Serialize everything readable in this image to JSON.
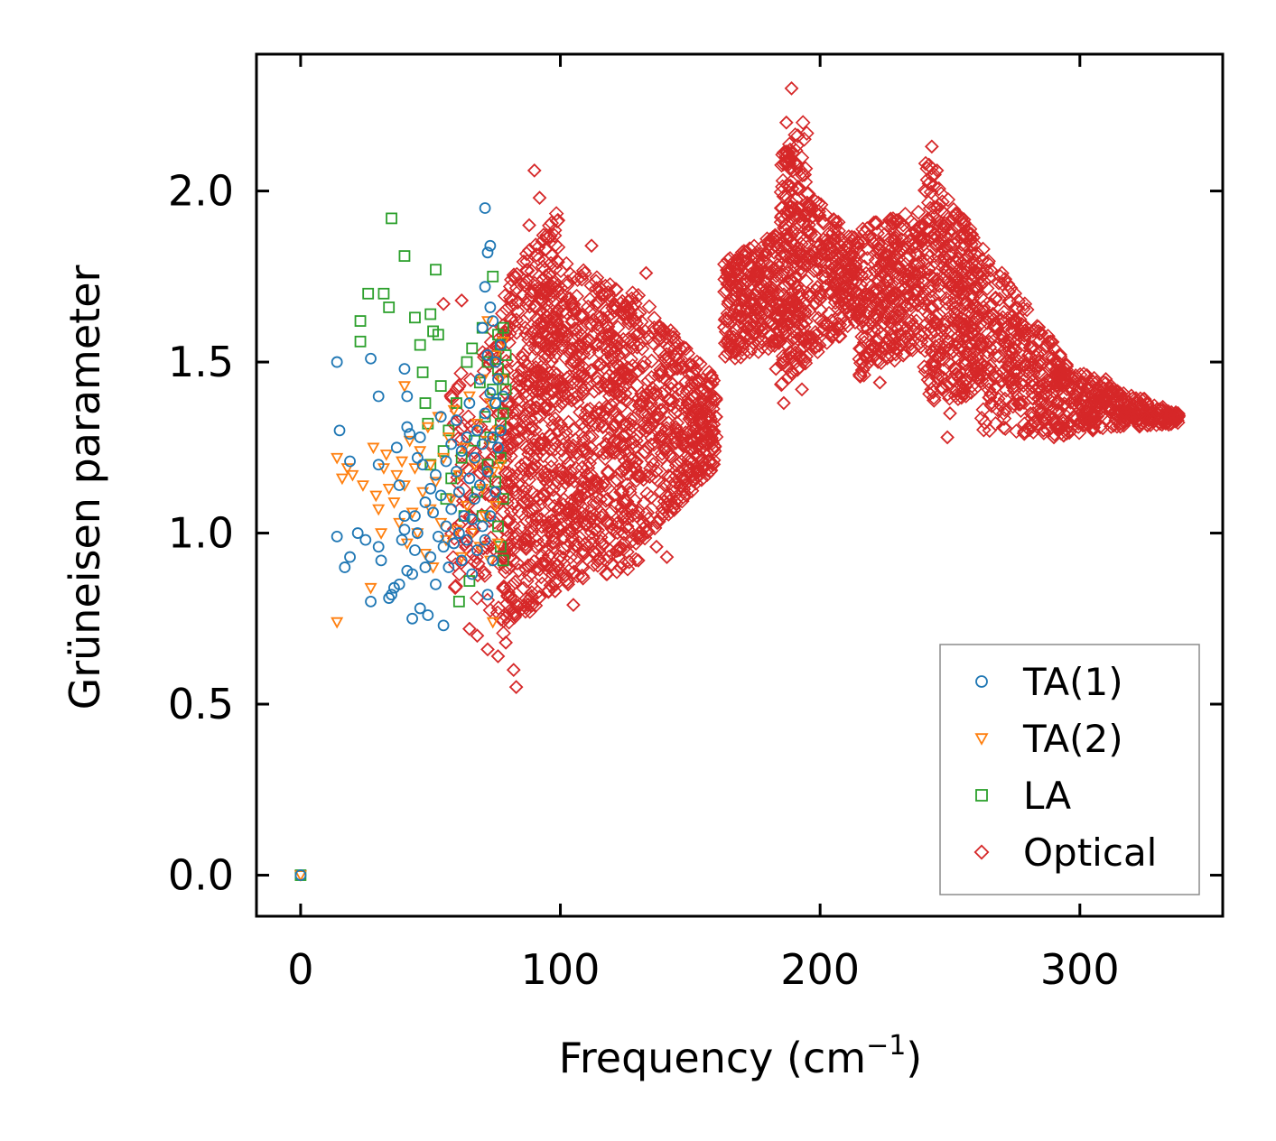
{
  "chart_data": {
    "type": "scatter",
    "xlabel": "Frequency (cm",
    "xlabel_sup": "−1",
    "xlabel_close": ")",
    "ylabel": "Grüneisen parameter",
    "xlim": [
      -17,
      355
    ],
    "ylim": [
      -0.12,
      2.4
    ],
    "x_ticks": [
      {
        "value": 0,
        "label": "0"
      },
      {
        "value": 100,
        "label": "100"
      },
      {
        "value": 200,
        "label": "200"
      },
      {
        "value": 300,
        "label": "300"
      }
    ],
    "y_ticks": [
      {
        "value": 0.0,
        "label": "0.0"
      },
      {
        "value": 0.5,
        "label": "0.5"
      },
      {
        "value": 1.0,
        "label": "1.0"
      },
      {
        "value": 1.5,
        "label": "1.5"
      },
      {
        "value": 2.0,
        "label": "2.0"
      }
    ],
    "legend_position": "lower-right",
    "series": [
      {
        "name": "TA(1)",
        "marker": "circle",
        "color": "#1f77b4",
        "points": [
          [
            0,
            0
          ],
          [
            14,
            1.5
          ],
          [
            15,
            1.3
          ],
          [
            14,
            0.99
          ],
          [
            17,
            0.9
          ],
          [
            19,
            0.93
          ],
          [
            19,
            1.21
          ],
          [
            22,
            1.0
          ],
          [
            25,
            0.98
          ],
          [
            27,
            1.51
          ],
          [
            27,
            0.8
          ],
          [
            30,
            1.4
          ],
          [
            30,
            1.2
          ],
          [
            30,
            0.96
          ],
          [
            31,
            0.92
          ],
          [
            34,
            0.81
          ],
          [
            35,
            0.82
          ],
          [
            36,
            0.84
          ],
          [
            37,
            1.25
          ],
          [
            38,
            0.85
          ],
          [
            38,
            1.14
          ],
          [
            39,
            0.98
          ],
          [
            40,
            1.48
          ],
          [
            40,
            1.05
          ],
          [
            40,
            1.01
          ],
          [
            41,
            1.31
          ],
          [
            41,
            1.4
          ],
          [
            41,
            0.89
          ],
          [
            42,
            1.29
          ],
          [
            43,
            0.75
          ],
          [
            43,
            0.88
          ],
          [
            44,
            1.05
          ],
          [
            44,
            0.95
          ],
          [
            45,
            1.22
          ],
          [
            45,
            1.0
          ],
          [
            46,
            0.78
          ],
          [
            46,
            1.28
          ],
          [
            47,
            1.2
          ],
          [
            48,
            1.09
          ],
          [
            48,
            0.9
          ],
          [
            49,
            0.76
          ],
          [
            50,
            1.13
          ],
          [
            50,
            0.93
          ],
          [
            51,
            1.06
          ],
          [
            52,
            0.85
          ],
          [
            52,
            1.17
          ],
          [
            53,
            0.99
          ],
          [
            54,
            1.34
          ],
          [
            54,
            1.11
          ],
          [
            55,
            0.73
          ],
          [
            55,
            0.96
          ],
          [
            56,
            1.21
          ],
          [
            56,
            1.02
          ],
          [
            57,
            0.9
          ],
          [
            58,
            1.26
          ],
          [
            58,
            1.07
          ],
          [
            59,
            0.97
          ],
          [
            60,
            1.18
          ],
          [
            60,
            1.33
          ],
          [
            61,
            1.0
          ],
          [
            61,
            1.12
          ],
          [
            62,
            0.92
          ],
          [
            62,
            1.24
          ],
          [
            63,
            1.05
          ],
          [
            64,
            1.28
          ],
          [
            64,
            0.98
          ],
          [
            65,
            1.16
          ],
          [
            65,
            1.38
          ],
          [
            66,
            1.04
          ],
          [
            66,
            0.88
          ],
          [
            67,
            1.22
          ],
          [
            67,
            1.1
          ],
          [
            68,
            1.3
          ],
          [
            68,
            0.95
          ],
          [
            69,
            1.14
          ],
          [
            69,
            1.45
          ],
          [
            70,
            1.02
          ],
          [
            70,
            1.26
          ],
          [
            70,
            1.6
          ],
          [
            71,
            1.95
          ],
          [
            71,
            1.72
          ],
          [
            71,
            1.35
          ],
          [
            71,
            0.98
          ],
          [
            72,
            1.82
          ],
          [
            72,
            1.52
          ],
          [
            72,
            1.18
          ],
          [
            72,
            0.82
          ],
          [
            73,
            1.84
          ],
          [
            73,
            1.66
          ],
          [
            73,
            1.41
          ],
          [
            73,
            1.05
          ],
          [
            74,
            1.62
          ],
          [
            74,
            1.28
          ],
          [
            74,
            0.92
          ],
          [
            75,
            1.5
          ],
          [
            75,
            1.12
          ],
          [
            75,
            1.38
          ],
          [
            76,
            1.25
          ],
          [
            76,
            1.45
          ],
          [
            77,
            1.3
          ],
          [
            77,
            1.55
          ],
          [
            78,
            1.4
          ]
        ]
      },
      {
        "name": "TA(2)",
        "marker": "triangle-down",
        "color": "#ff7f0e",
        "points": [
          [
            0,
            0
          ],
          [
            14,
            0.74
          ],
          [
            14,
            1.22
          ],
          [
            16,
            1.16
          ],
          [
            18,
            1.19
          ],
          [
            20,
            1.17
          ],
          [
            24,
            1.14
          ],
          [
            27,
            0.84
          ],
          [
            28,
            1.25
          ],
          [
            29,
            1.11
          ],
          [
            30,
            1.07
          ],
          [
            31,
            1.0
          ],
          [
            32,
            1.19
          ],
          [
            33,
            1.23
          ],
          [
            34,
            1.13
          ],
          [
            36,
            1.09
          ],
          [
            37,
            1.17
          ],
          [
            38,
            1.03
          ],
          [
            39,
            1.21
          ],
          [
            40,
            1.14
          ],
          [
            40,
            1.43
          ],
          [
            41,
            0.97
          ],
          [
            42,
            1.27
          ],
          [
            43,
            1.06
          ],
          [
            44,
            1.19
          ],
          [
            45,
            1.0
          ],
          [
            46,
            1.24
          ],
          [
            47,
            1.12
          ],
          [
            48,
            0.94
          ],
          [
            49,
            1.31
          ],
          [
            50,
            1.07
          ],
          [
            50,
            1.2
          ],
          [
            51,
            0.9
          ],
          [
            52,
            1.15
          ],
          [
            53,
            1.34
          ],
          [
            54,
            1.03
          ],
          [
            55,
            1.22
          ],
          [
            56,
            0.98
          ],
          [
            57,
            1.28
          ],
          [
            58,
            1.1
          ],
          [
            59,
            1.36
          ],
          [
            60,
            1.01
          ],
          [
            61,
            1.17
          ],
          [
            62,
            0.93
          ],
          [
            63,
            1.25
          ],
          [
            64,
            1.08
          ],
          [
            65,
            1.4
          ],
          [
            66,
            1.0
          ],
          [
            67,
            1.2
          ],
          [
            68,
            1.32
          ],
          [
            69,
            0.96
          ],
          [
            70,
            1.13
          ],
          [
            70,
            1.45
          ],
          [
            71,
            1.05
          ],
          [
            72,
            1.27
          ],
          [
            72,
            1.62
          ],
          [
            73,
            0.92
          ],
          [
            73,
            1.38
          ],
          [
            74,
            1.18
          ],
          [
            74,
            0.74
          ],
          [
            75,
            1.52
          ],
          [
            75,
            1.08
          ],
          [
            76,
            1.3
          ],
          [
            76,
            0.97
          ],
          [
            77,
            1.45
          ],
          [
            77,
            1.2
          ],
          [
            78,
            1.56
          ]
        ]
      },
      {
        "name": "LA",
        "marker": "square",
        "color": "#2ca02c",
        "points": [
          [
            0,
            0
          ],
          [
            23,
            1.62
          ],
          [
            23,
            1.56
          ],
          [
            26,
            1.7
          ],
          [
            32,
            1.7
          ],
          [
            34,
            1.66
          ],
          [
            35,
            1.92
          ],
          [
            40,
            1.81
          ],
          [
            44,
            1.63
          ],
          [
            46,
            1.55
          ],
          [
            47,
            1.47
          ],
          [
            48,
            1.38
          ],
          [
            49,
            1.32
          ],
          [
            50,
            1.2
          ],
          [
            50,
            1.64
          ],
          [
            51,
            1.59
          ],
          [
            52,
            1.77
          ],
          [
            53,
            1.58
          ],
          [
            54,
            1.43
          ],
          [
            55,
            1.24
          ],
          [
            56,
            1.1
          ],
          [
            57,
            1.3
          ],
          [
            58,
            1.16
          ],
          [
            60,
            1.38
          ],
          [
            61,
            0.8
          ],
          [
            62,
            1.22
          ],
          [
            63,
            1.05
          ],
          [
            64,
            1.5
          ],
          [
            65,
            0.86
          ],
          [
            66,
            1.54
          ],
          [
            67,
            1.27
          ],
          [
            68,
            1.12
          ],
          [
            69,
            1.44
          ],
          [
            70,
            1.6
          ],
          [
            70,
            1.05
          ],
          [
            71,
            1.34
          ],
          [
            72,
            1.2
          ],
          [
            72,
            1.5
          ],
          [
            73,
            1.28
          ],
          [
            74,
            1.42
          ],
          [
            74,
            1.75
          ],
          [
            75,
            1.15
          ],
          [
            75,
            1.38
          ],
          [
            76,
            1.58
          ],
          [
            76,
            1.48
          ],
          [
            76,
            1.02
          ],
          [
            77,
            1.32
          ],
          [
            77,
            1.55
          ],
          [
            77,
            1.22
          ],
          [
            78,
            1.45
          ],
          [
            78,
            1.6
          ],
          [
            78,
            1.35
          ],
          [
            79,
            1.52
          ],
          [
            79,
            1.42
          ],
          [
            78,
            0.92
          ],
          [
            77,
            0.96
          ],
          [
            78,
            1.1
          ]
        ]
      },
      {
        "name": "Optical",
        "marker": "diamond",
        "color": "#d62728",
        "points": [
          [
            55,
            1.67
          ],
          [
            62,
            1.68
          ],
          [
            65,
            0.72
          ],
          [
            68,
            0.7
          ],
          [
            72,
            0.66
          ],
          [
            76,
            0.64
          ],
          [
            79,
            0.68
          ],
          [
            82,
            0.6
          ],
          [
            83,
            0.55
          ],
          [
            88,
            1.9
          ],
          [
            90,
            2.06
          ],
          [
            92,
            1.98
          ],
          [
            96,
            0.9
          ],
          [
            98,
            0.83
          ],
          [
            103,
            0.85
          ],
          [
            105,
            0.79
          ],
          [
            112,
            1.84
          ],
          [
            118,
            0.88
          ],
          [
            123,
            0.9
          ],
          [
            130,
            0.92
          ],
          [
            133,
            1.76
          ],
          [
            137,
            0.96
          ],
          [
            141,
            0.93
          ],
          [
            145,
            1.48
          ],
          [
            150,
            1.3
          ],
          [
            155,
            1.42
          ],
          [
            160,
            1.34
          ],
          [
            164,
            1.75
          ],
          [
            166,
            1.55
          ],
          [
            172,
            1.7
          ],
          [
            179,
            1.82
          ],
          [
            183,
            1.48
          ],
          [
            186,
            1.38
          ],
          [
            187,
            2.2
          ],
          [
            189,
            2.3
          ],
          [
            191,
            2.08
          ],
          [
            193,
            1.42
          ],
          [
            195,
            1.55
          ],
          [
            199,
            1.72
          ],
          [
            204,
            1.85
          ],
          [
            207,
            1.6
          ],
          [
            211,
            1.8
          ],
          [
            215,
            1.64
          ],
          [
            219,
            1.5
          ],
          [
            223,
            1.44
          ],
          [
            227,
            1.78
          ],
          [
            231,
            1.55
          ],
          [
            234,
            1.74
          ],
          [
            238,
            1.68
          ],
          [
            240,
            1.9
          ],
          [
            243,
            2.13
          ],
          [
            245,
            2.06
          ],
          [
            247,
            1.42
          ],
          [
            249,
            1.28
          ],
          [
            250,
            1.35
          ],
          [
            254,
            1.82
          ],
          [
            258,
            1.66
          ],
          [
            262,
            1.48
          ],
          [
            266,
            1.38
          ],
          [
            270,
            1.58
          ],
          [
            276,
            1.4
          ],
          [
            281,
            1.35
          ],
          [
            286,
            1.3
          ],
          [
            290,
            1.28
          ],
          [
            295,
            1.42
          ],
          [
            300,
            1.36
          ],
          [
            305,
            1.3
          ],
          [
            310,
            1.45
          ],
          [
            315,
            1.38
          ],
          [
            320,
            1.36
          ],
          [
            325,
            1.34
          ],
          [
            330,
            1.35
          ],
          [
            335,
            1.34
          ],
          [
            338,
            1.34
          ]
        ]
      }
    ]
  }
}
